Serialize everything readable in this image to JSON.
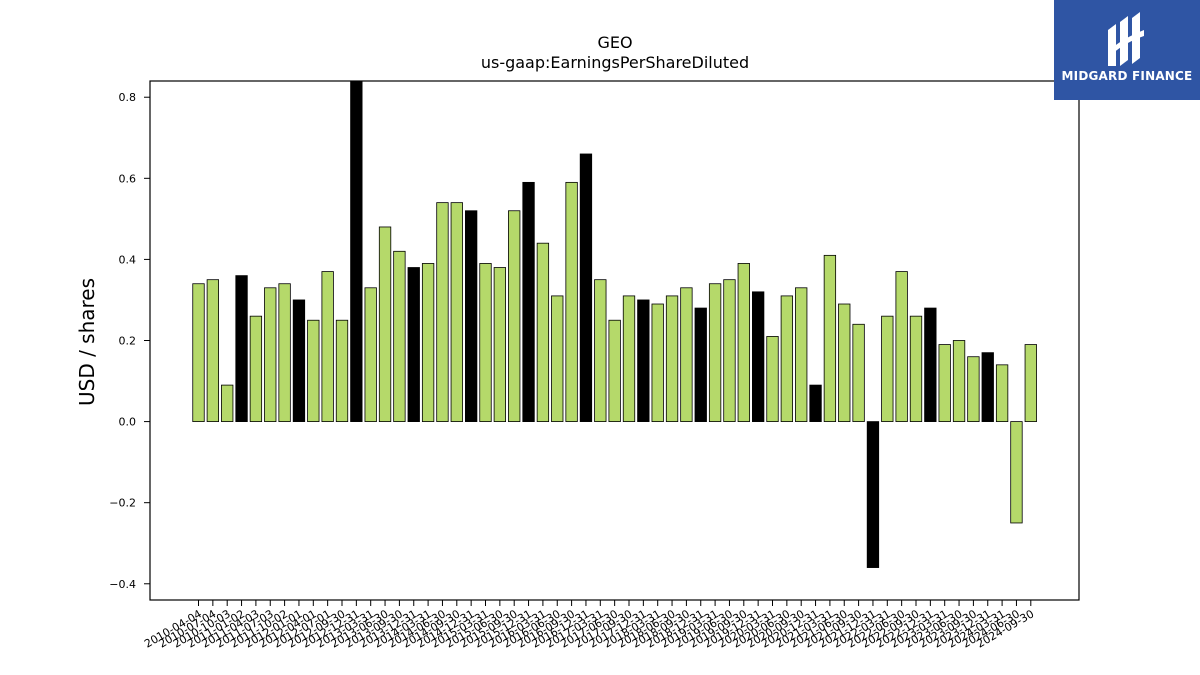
{
  "logo": {
    "text": "MIDGARD FINANCE",
    "icon": "midgard-logo-icon",
    "background": "#2f55a4"
  },
  "chart_data": {
    "type": "bar",
    "title": "GEO",
    "subtitle": "us-gaap:EarningsPerShareDiluted",
    "xlabel": "",
    "ylabel": "USD / shares",
    "ylim": [
      -0.44,
      0.84
    ],
    "yticks": [
      -0.4,
      -0.2,
      0.0,
      0.2,
      0.4,
      0.6,
      0.8
    ],
    "ytick_labels": [
      "−0.4",
      "−0.2",
      "0.0",
      "0.2",
      "0.4",
      "0.6",
      "0.8"
    ],
    "grid": false,
    "colors": {
      "quarter": "#b5d96a",
      "annual": "#000000"
    },
    "categories": [
      "2010-04-04",
      "2010-07-04",
      "2010-10-03",
      "2011-01-02",
      "2011-04-03",
      "2011-07-03",
      "2011-10-02",
      "2012-01-01",
      "2012-04-01",
      "2012-07-01",
      "2012-09-30",
      "2012-12-31",
      "2013-03-31",
      "2013-06-30",
      "2013-09-30",
      "2013-12-31",
      "2014-03-31",
      "2014-06-30",
      "2014-09-30",
      "2014-12-31",
      "2015-03-31",
      "2015-06-30",
      "2015-09-30",
      "2015-12-31",
      "2016-03-31",
      "2016-06-30",
      "2016-09-30",
      "2016-12-31",
      "2017-03-31",
      "2017-06-30",
      "2017-09-30",
      "2017-12-31",
      "2018-03-31",
      "2018-06-30",
      "2018-09-30",
      "2018-12-31",
      "2019-03-31",
      "2019-06-30",
      "2019-09-30",
      "2019-12-31",
      "2020-03-31",
      "2020-06-30",
      "2020-09-30",
      "2020-12-31",
      "2021-03-31",
      "2021-06-30",
      "2021-09-30",
      "2021-12-31",
      "2022-03-31",
      "2022-06-30",
      "2022-09-30",
      "2022-12-31",
      "2023-03-31",
      "2023-06-30",
      "2023-09-30",
      "2023-12-31",
      "2024-03-31",
      "2024-06-30",
      "2024-09-30"
    ],
    "values": [
      0.34,
      0.35,
      0.09,
      0.36,
      0.26,
      0.33,
      0.34,
      0.3,
      0.25,
      0.37,
      0.25,
      0.84,
      0.33,
      0.48,
      0.42,
      0.38,
      0.39,
      0.54,
      0.54,
      0.52,
      0.39,
      0.38,
      0.52,
      0.59,
      0.44,
      0.31,
      0.59,
      0.66,
      0.35,
      0.25,
      0.31,
      0.3,
      0.29,
      0.31,
      0.33,
      0.28,
      0.34,
      0.35,
      0.39,
      0.32,
      0.21,
      0.31,
      0.33,
      0.09,
      0.41,
      0.29,
      0.24,
      -0.36,
      0.26,
      0.37,
      0.26,
      0.28,
      0.19,
      0.2,
      0.16,
      0.17,
      0.14,
      -0.25,
      0.19
    ],
    "annual": [
      false,
      false,
      false,
      true,
      false,
      false,
      false,
      true,
      false,
      false,
      false,
      true,
      false,
      false,
      false,
      true,
      false,
      false,
      false,
      true,
      false,
      false,
      false,
      true,
      false,
      false,
      false,
      true,
      false,
      false,
      false,
      true,
      false,
      false,
      false,
      true,
      false,
      false,
      false,
      true,
      false,
      false,
      false,
      true,
      false,
      false,
      false,
      true,
      false,
      false,
      false,
      true,
      false,
      false,
      false,
      true,
      false,
      false,
      false
    ]
  }
}
